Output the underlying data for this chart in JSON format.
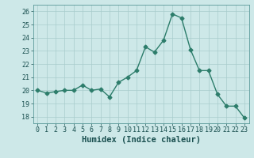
{
  "x": [
    0,
    1,
    2,
    3,
    4,
    5,
    6,
    7,
    8,
    9,
    10,
    11,
    12,
    13,
    14,
    15,
    16,
    17,
    18,
    19,
    20,
    21,
    22,
    23
  ],
  "y": [
    20.0,
    19.8,
    19.9,
    20.0,
    20.0,
    20.4,
    20.0,
    20.1,
    19.5,
    20.6,
    21.0,
    21.5,
    23.3,
    22.9,
    23.8,
    25.8,
    25.5,
    23.1,
    21.5,
    21.5,
    19.7,
    18.8,
    18.8,
    17.9
  ],
  "line_color": "#2d7d6b",
  "marker": "D",
  "marker_size": 2.5,
  "background_color": "#cde8e8",
  "grid_color": "#a8cccc",
  "xlabel": "Humidex (Indice chaleur)",
  "xlabel_fontsize": 7.5,
  "ylim": [
    17.5,
    26.5
  ],
  "xlim": [
    -0.5,
    23.5
  ],
  "yticks": [
    18,
    19,
    20,
    21,
    22,
    23,
    24,
    25,
    26
  ],
  "xticks": [
    0,
    1,
    2,
    3,
    4,
    5,
    6,
    7,
    8,
    9,
    10,
    11,
    12,
    13,
    14,
    15,
    16,
    17,
    18,
    19,
    20,
    21,
    22,
    23
  ],
  "tick_fontsize": 6,
  "line_width": 1.0
}
